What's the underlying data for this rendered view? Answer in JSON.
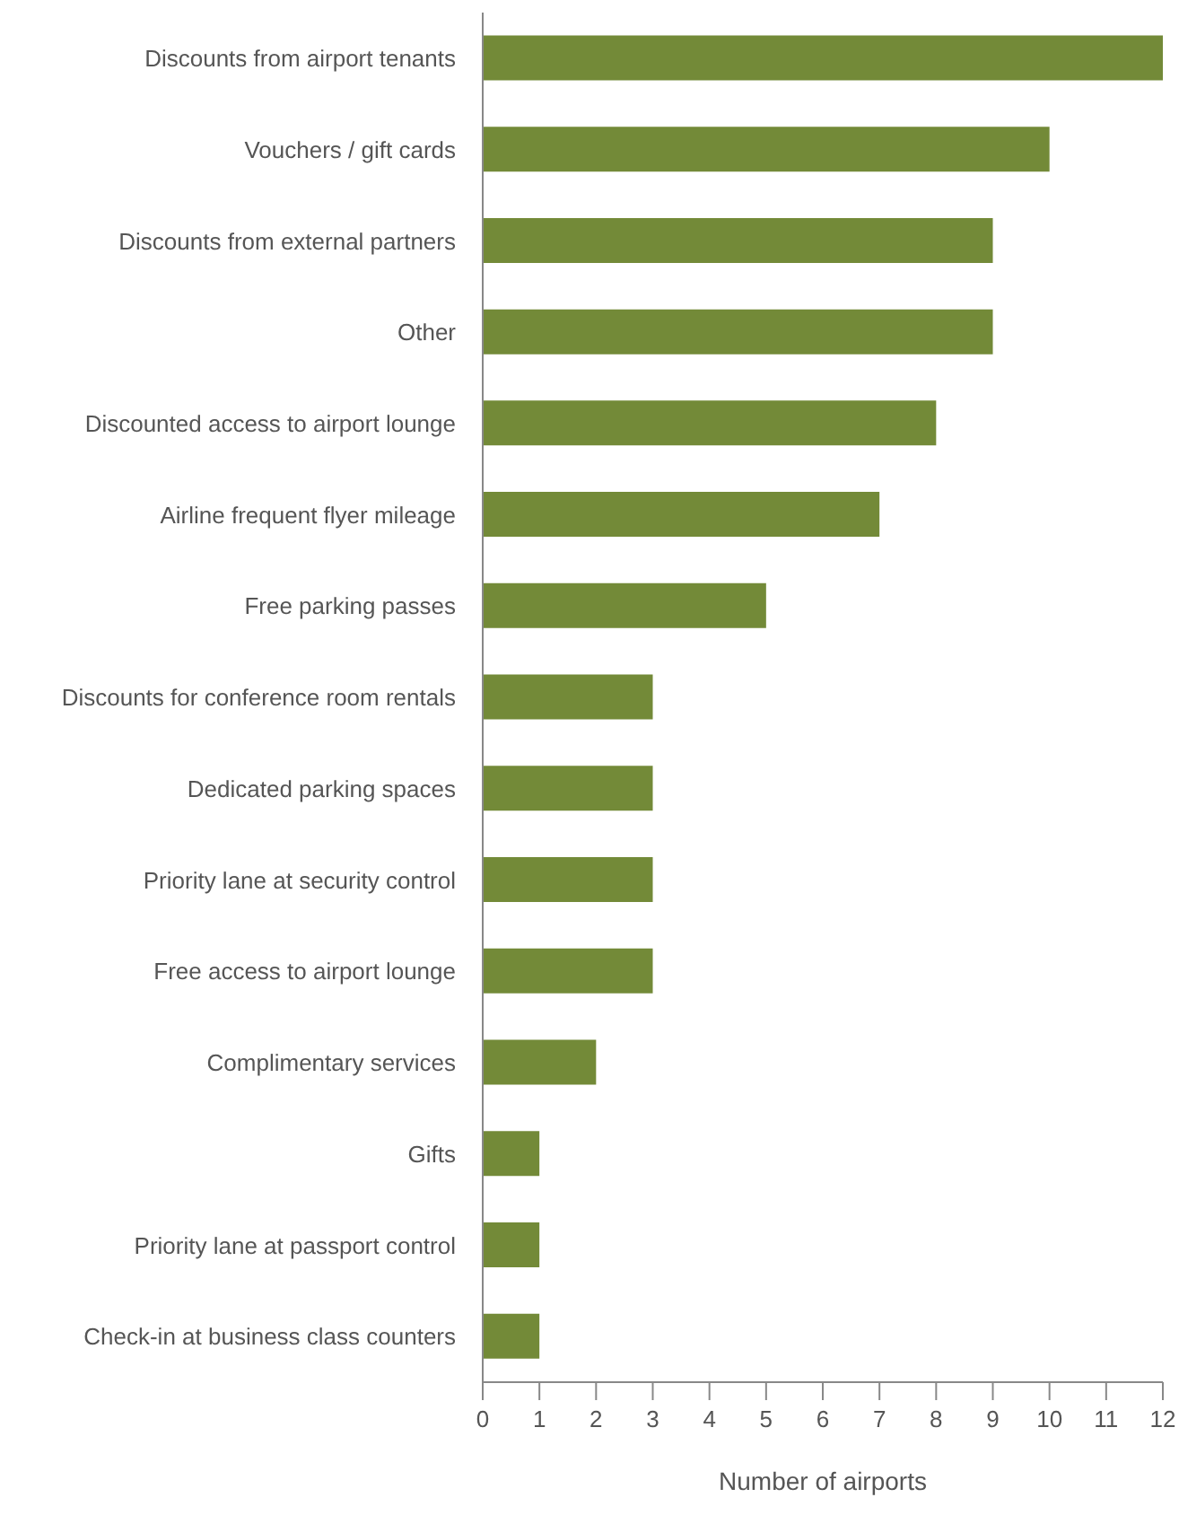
{
  "chart_data": {
    "type": "bar",
    "orientation": "horizontal",
    "xlabel": "Number of airports",
    "categories": [
      "Discounts from airport tenants",
      "Vouchers / gift cards",
      "Discounts from external partners",
      "Other",
      "Discounted access to airport lounge",
      "Airline frequent flyer mileage",
      "Free parking passes",
      "Discounts for conference room rentals",
      "Dedicated parking spaces",
      "Priority lane at security control",
      "Free access to airport lounge",
      "Complimentary services",
      "Gifts",
      "Priority lane at passport control",
      "Check-in at business class counters"
    ],
    "values": [
      12,
      10,
      9,
      9,
      8,
      7,
      5,
      3,
      3,
      3,
      3,
      2,
      1,
      1,
      1
    ],
    "color": "#738a38",
    "xlim": [
      0,
      12
    ],
    "xticks": [
      0,
      1,
      2,
      3,
      4,
      5,
      6,
      7,
      8,
      9,
      10,
      11,
      12
    ],
    "grid": false,
    "legend": false
  }
}
